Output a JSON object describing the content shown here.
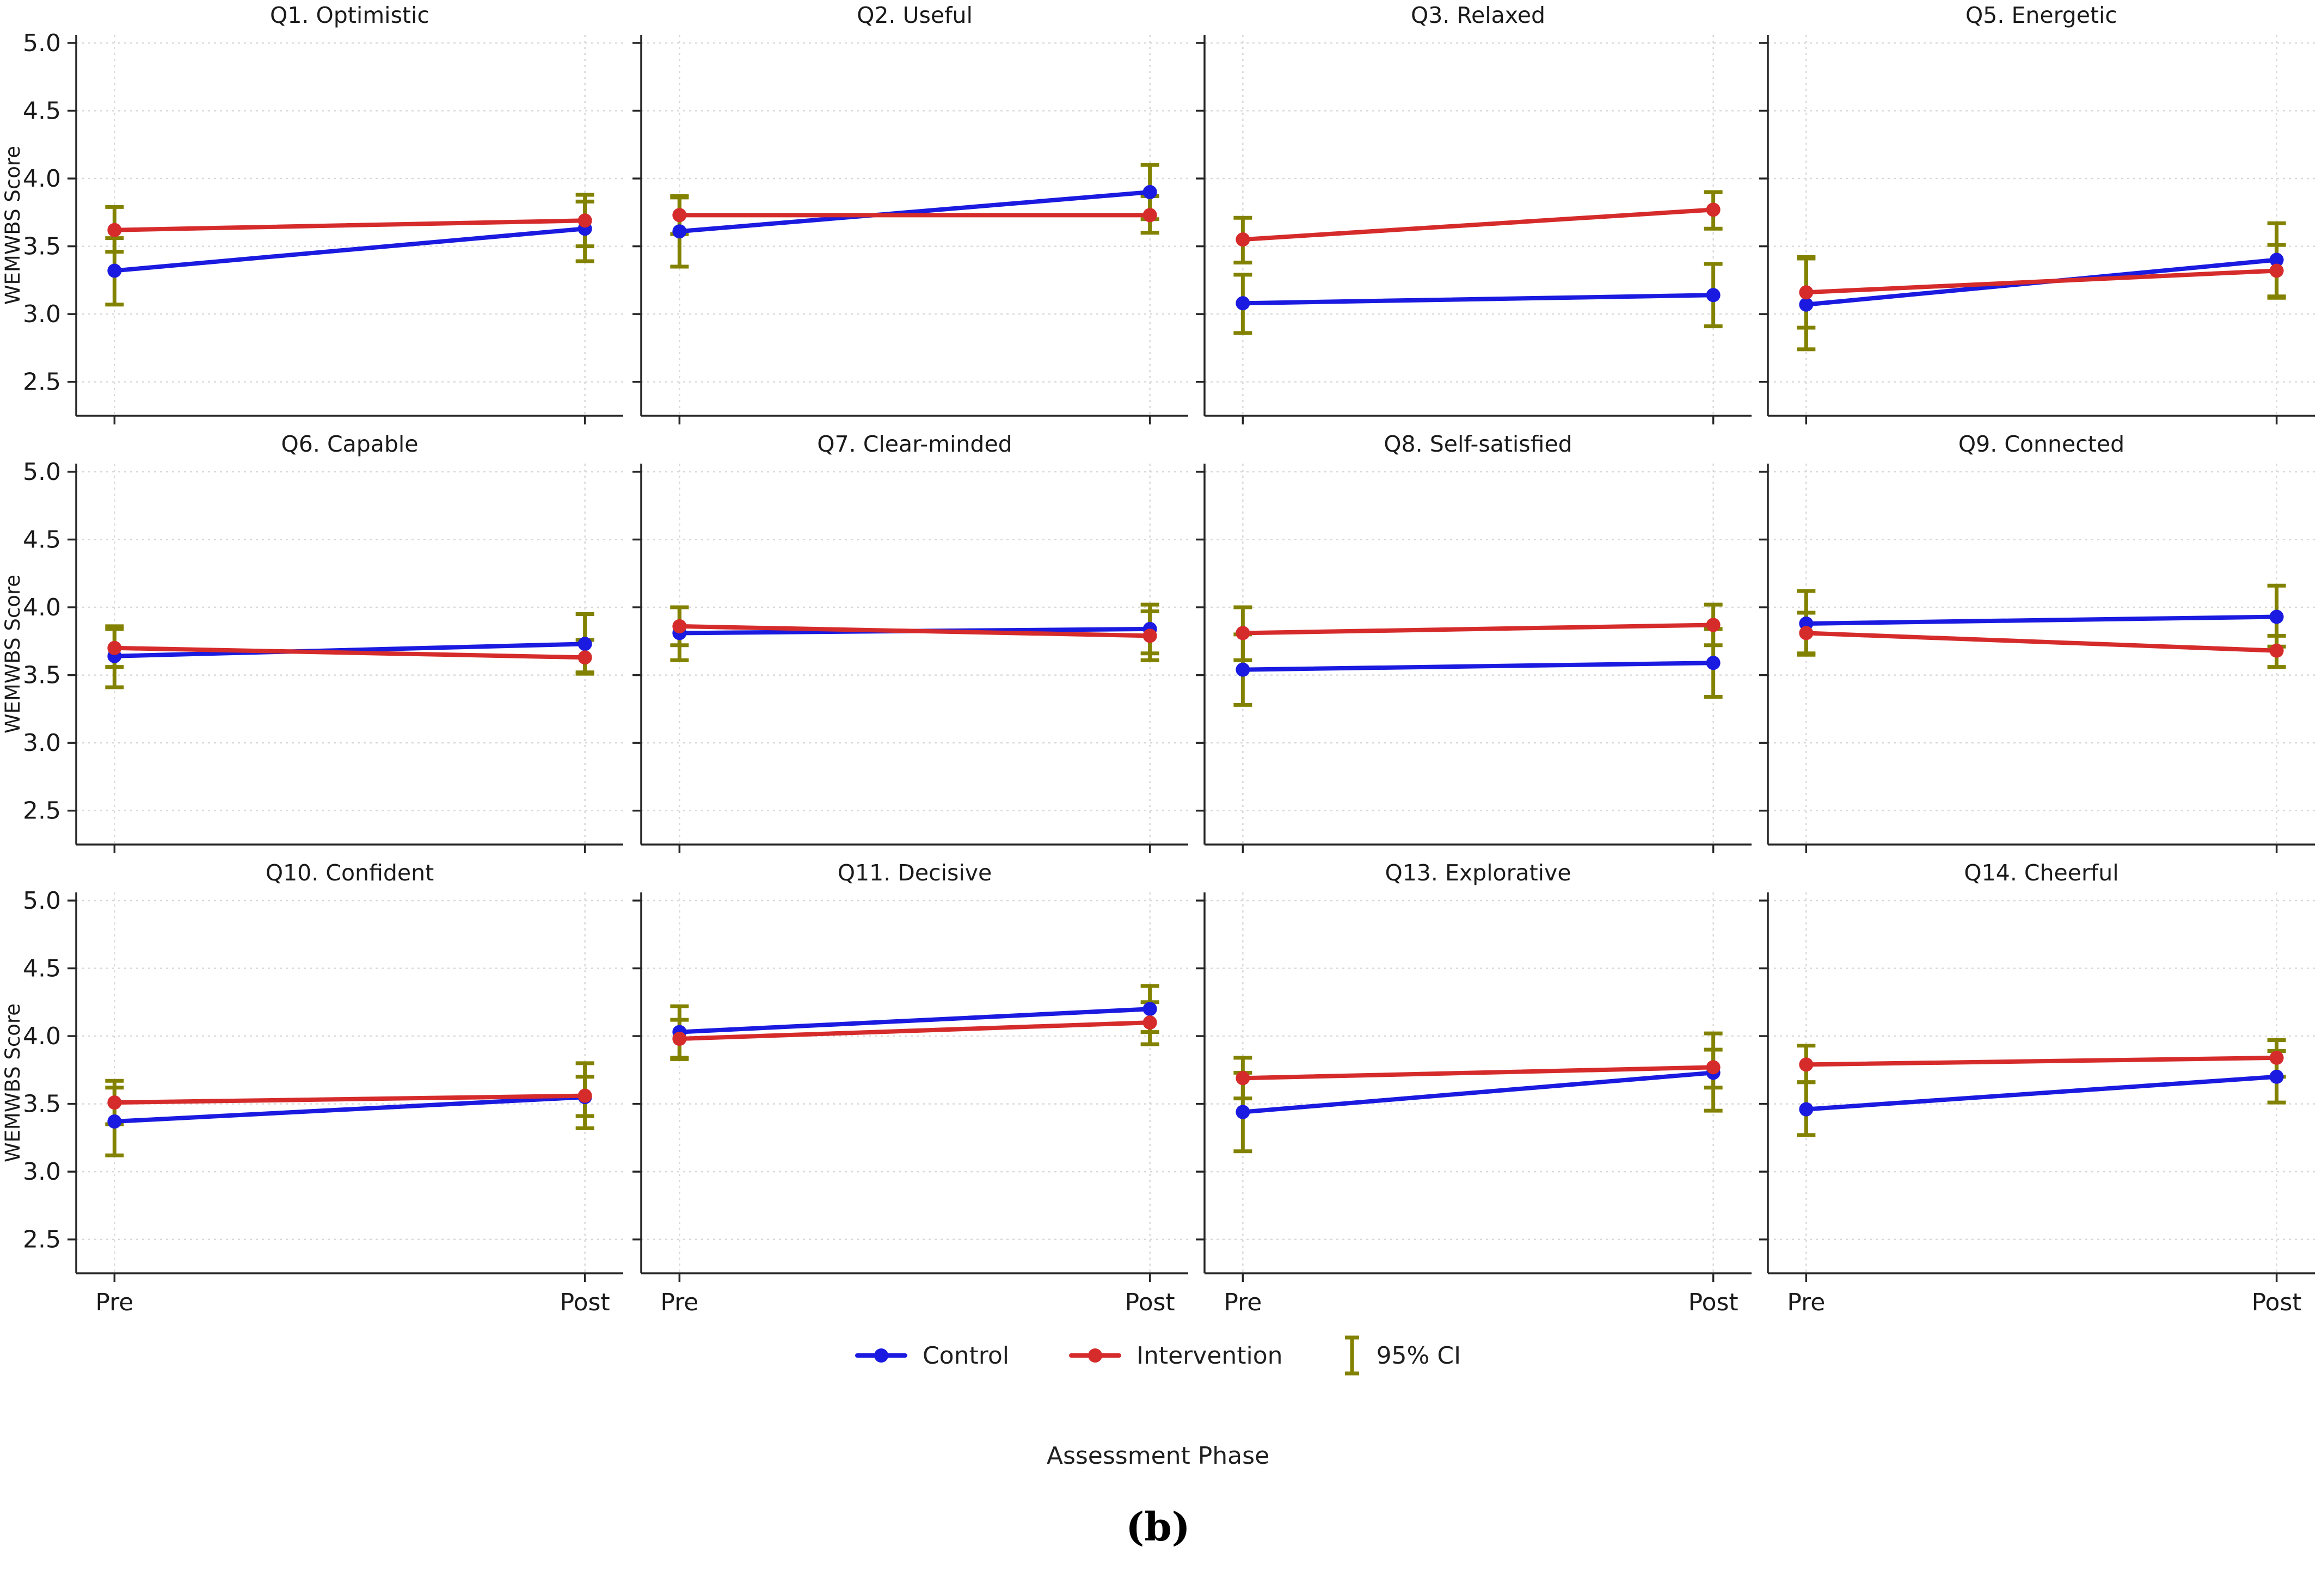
{
  "figure": {
    "ylabel": "WEMWBS Score",
    "xlabel": "Assessment Phase",
    "caption": "(b)",
    "x_categories": [
      "Pre",
      "Post"
    ],
    "yticks": [
      5.0,
      4.5,
      4.0,
      3.5,
      3.0,
      2.5
    ],
    "ylim": [
      2.25,
      5.06
    ],
    "grid": "dashed",
    "legend": [
      {
        "label": "Control",
        "color": "#1a1ae0"
      },
      {
        "label": "Intervention",
        "color": "#d62b2b"
      },
      {
        "label": "95% CI",
        "color": "#828200"
      }
    ]
  },
  "chart_data": [
    {
      "type": "line",
      "title": "Q1. Optimistic",
      "x": [
        "Pre",
        "Post"
      ],
      "series": [
        {
          "name": "Control",
          "values": [
            3.32,
            3.63
          ],
          "ci_low": [
            3.07,
            3.39
          ],
          "ci_high": [
            3.56,
            3.83
          ]
        },
        {
          "name": "Intervention",
          "values": [
            3.62,
            3.69
          ],
          "ci_low": [
            3.46,
            3.5
          ],
          "ci_high": [
            3.79,
            3.88
          ]
        }
      ]
    },
    {
      "type": "line",
      "title": "Q2. Useful",
      "x": [
        "Pre",
        "Post"
      ],
      "series": [
        {
          "name": "Control",
          "values": [
            3.61,
            3.9
          ],
          "ci_low": [
            3.35,
            3.7
          ],
          "ci_high": [
            3.87,
            4.1
          ]
        },
        {
          "name": "Intervention",
          "values": [
            3.73,
            3.73
          ],
          "ci_low": [
            3.59,
            3.6
          ],
          "ci_high": [
            3.86,
            3.87
          ]
        }
      ]
    },
    {
      "type": "line",
      "title": "Q3. Relaxed",
      "x": [
        "Pre",
        "Post"
      ],
      "series": [
        {
          "name": "Control",
          "values": [
            3.08,
            3.14
          ],
          "ci_low": [
            2.86,
            2.91
          ],
          "ci_high": [
            3.29,
            3.37
          ]
        },
        {
          "name": "Intervention",
          "values": [
            3.55,
            3.77
          ],
          "ci_low": [
            3.38,
            3.63
          ],
          "ci_high": [
            3.71,
            3.9
          ]
        }
      ]
    },
    {
      "type": "line",
      "title": "Q5. Energetic",
      "x": [
        "Pre",
        "Post"
      ],
      "series": [
        {
          "name": "Control",
          "values": [
            3.07,
            3.4
          ],
          "ci_low": [
            2.74,
            3.13
          ],
          "ci_high": [
            3.41,
            3.67
          ]
        },
        {
          "name": "Intervention",
          "values": [
            3.16,
            3.32
          ],
          "ci_low": [
            2.9,
            3.12
          ],
          "ci_high": [
            3.42,
            3.51
          ]
        }
      ]
    },
    {
      "type": "line",
      "title": "Q6. Capable",
      "x": [
        "Pre",
        "Post"
      ],
      "series": [
        {
          "name": "Control",
          "values": [
            3.64,
            3.73
          ],
          "ci_low": [
            3.41,
            3.52
          ],
          "ci_high": [
            3.86,
            3.95
          ]
        },
        {
          "name": "Intervention",
          "values": [
            3.7,
            3.63
          ],
          "ci_low": [
            3.56,
            3.51
          ],
          "ci_high": [
            3.84,
            3.76
          ]
        }
      ]
    },
    {
      "type": "line",
      "title": "Q7. Clear-minded",
      "x": [
        "Pre",
        "Post"
      ],
      "series": [
        {
          "name": "Control",
          "values": [
            3.81,
            3.84
          ],
          "ci_low": [
            3.61,
            3.66
          ],
          "ci_high": [
            4.0,
            4.02
          ]
        },
        {
          "name": "Intervention",
          "values": [
            3.86,
            3.79
          ],
          "ci_low": [
            3.72,
            3.61
          ],
          "ci_high": [
            4.0,
            3.97
          ]
        }
      ]
    },
    {
      "type": "line",
      "title": "Q8. Self-satisfied",
      "x": [
        "Pre",
        "Post"
      ],
      "series": [
        {
          "name": "Control",
          "values": [
            3.54,
            3.59
          ],
          "ci_low": [
            3.28,
            3.34
          ],
          "ci_high": [
            3.8,
            3.84
          ]
        },
        {
          "name": "Intervention",
          "values": [
            3.81,
            3.87
          ],
          "ci_low": [
            3.61,
            3.72
          ],
          "ci_high": [
            4.0,
            4.02
          ]
        }
      ]
    },
    {
      "type": "line",
      "title": "Q9. Connected",
      "x": [
        "Pre",
        "Post"
      ],
      "series": [
        {
          "name": "Control",
          "values": [
            3.88,
            3.93
          ],
          "ci_low": [
            3.65,
            3.71
          ],
          "ci_high": [
            4.12,
            4.16
          ]
        },
        {
          "name": "Intervention",
          "values": [
            3.81,
            3.68
          ],
          "ci_low": [
            3.66,
            3.56
          ],
          "ci_high": [
            3.96,
            3.79
          ]
        }
      ]
    },
    {
      "type": "line",
      "title": "Q10. Confident",
      "x": [
        "Pre",
        "Post"
      ],
      "series": [
        {
          "name": "Control",
          "values": [
            3.37,
            3.55
          ],
          "ci_low": [
            3.12,
            3.32
          ],
          "ci_high": [
            3.62,
            3.8
          ]
        },
        {
          "name": "Intervention",
          "values": [
            3.51,
            3.56
          ],
          "ci_low": [
            3.35,
            3.41
          ],
          "ci_high": [
            3.67,
            3.7
          ]
        }
      ]
    },
    {
      "type": "line",
      "title": "Q11. Decisive",
      "x": [
        "Pre",
        "Post"
      ],
      "series": [
        {
          "name": "Control",
          "values": [
            4.03,
            4.2
          ],
          "ci_low": [
            3.84,
            4.03
          ],
          "ci_high": [
            4.22,
            4.37
          ]
        },
        {
          "name": "Intervention",
          "values": [
            3.98,
            4.1
          ],
          "ci_low": [
            3.83,
            3.94
          ],
          "ci_high": [
            4.12,
            4.25
          ]
        }
      ]
    },
    {
      "type": "line",
      "title": "Q13. Explorative",
      "x": [
        "Pre",
        "Post"
      ],
      "series": [
        {
          "name": "Control",
          "values": [
            3.44,
            3.73
          ],
          "ci_low": [
            3.15,
            3.45
          ],
          "ci_high": [
            3.73,
            4.02
          ]
        },
        {
          "name": "Intervention",
          "values": [
            3.69,
            3.77
          ],
          "ci_low": [
            3.54,
            3.62
          ],
          "ci_high": [
            3.84,
            3.9
          ]
        }
      ]
    },
    {
      "type": "line",
      "title": "Q14. Cheerful",
      "x": [
        "Pre",
        "Post"
      ],
      "series": [
        {
          "name": "Control",
          "values": [
            3.46,
            3.7
          ],
          "ci_low": [
            3.27,
            3.51
          ],
          "ci_high": [
            3.66,
            3.89
          ]
        },
        {
          "name": "Intervention",
          "values": [
            3.79,
            3.84
          ],
          "ci_low": [
            3.66,
            3.7
          ],
          "ci_high": [
            3.93,
            3.97
          ]
        }
      ]
    }
  ]
}
